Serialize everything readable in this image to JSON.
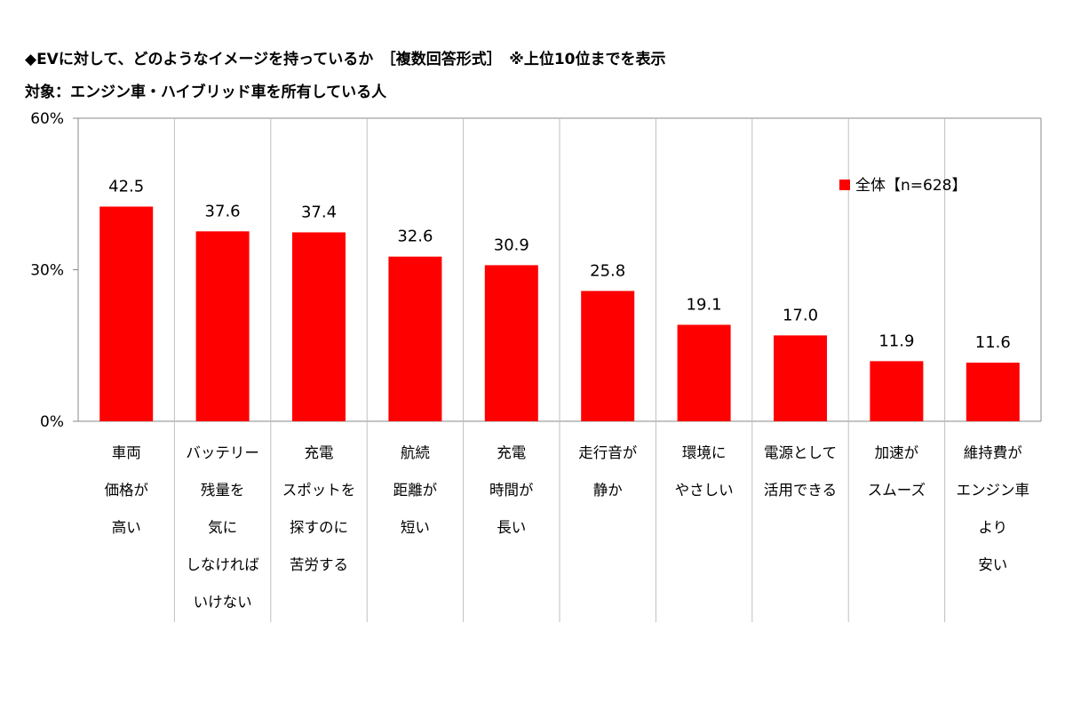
{
  "header": {
    "title": "◆EVに対して、どのようなイメージを持っているか　［複数回答形式］　※上位10位までを表示",
    "subtitle": "対象：エンジン車・ハイブリッド車を所有している人"
  },
  "colors": {
    "bar": "#ff0000",
    "axis": "#888888",
    "divider": "#bfbfbf"
  },
  "chart_data": {
    "type": "bar",
    "ylim": [
      0,
      60
    ],
    "yticks": [
      0,
      30,
      60
    ],
    "ytick_labels": [
      "0%",
      "30%",
      "60%"
    ],
    "legend_position": "top-right",
    "categories": [
      [
        "車両",
        "価格が",
        "高い"
      ],
      [
        "バッテリー",
        "残量を",
        "気に",
        "しなければ",
        "いけない"
      ],
      [
        "充電",
        "スポットを",
        "探すのに",
        "苦労する"
      ],
      [
        "航続",
        "距離が",
        "短い"
      ],
      [
        "充電",
        "時間が",
        "長い"
      ],
      [
        "走行音が",
        "静か"
      ],
      [
        "環境に",
        "やさしい"
      ],
      [
        "電源として",
        "活用できる"
      ],
      [
        "加速が",
        "スムーズ"
      ],
      [
        "維持費が",
        "エンジン車",
        "より",
        "安い"
      ]
    ],
    "series": [
      {
        "name": "全体【n=628】",
        "values": [
          42.5,
          37.6,
          37.4,
          32.6,
          30.9,
          25.8,
          19.1,
          17.0,
          11.9,
          11.6
        ],
        "labels": [
          "42.5",
          "37.6",
          "37.4",
          "32.6",
          "30.9",
          "25.8",
          "19.1",
          "17.0",
          "11.9",
          "11.6"
        ]
      }
    ]
  }
}
